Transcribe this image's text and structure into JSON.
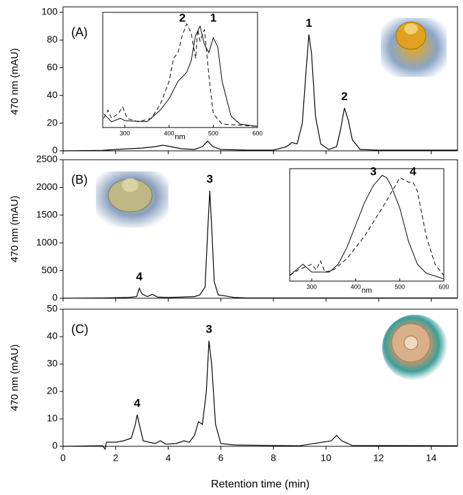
{
  "chart_data": [
    {
      "type": "line",
      "label": "(A)",
      "ylabel": "470 nm (mAU)",
      "xlim": [
        0,
        15
      ],
      "ylim": [
        0,
        100
      ],
      "yticks": [
        0,
        20,
        40,
        60,
        80,
        100
      ],
      "series": [
        {
          "color": "#000000",
          "x": [
            0,
            1.5,
            2,
            2.5,
            3,
            3.5,
            3.8,
            4.1,
            4.5,
            5,
            5.3,
            5.5,
            5.7,
            6,
            7,
            8,
            8.5,
            8.7,
            8.9,
            9.1,
            9.25,
            9.35,
            9.45,
            9.6,
            9.8,
            10.1,
            10.4,
            10.55,
            10.7,
            10.85,
            11,
            11.3,
            12,
            15
          ],
          "values": [
            0,
            0.3,
            1,
            1.5,
            2,
            3,
            4,
            3,
            1.5,
            1,
            3,
            7,
            3,
            1,
            0.5,
            0.5,
            3,
            6,
            5,
            20,
            60,
            84,
            70,
            25,
            5,
            1,
            3,
            15,
            31,
            22,
            8,
            1,
            0.5,
            0.5
          ]
        }
      ],
      "peak_labels": [
        {
          "label": "1",
          "x": 9.35,
          "y": 84
        },
        {
          "label": "2",
          "x": 10.7,
          "y": 31
        }
      ],
      "inset": {
        "type": "line",
        "xlim": [
          250,
          600
        ],
        "ylim": [
          0,
          100
        ],
        "xticks": [
          300,
          400,
          500,
          600
        ],
        "xlabel": "nm",
        "series": [
          {
            "color": "#000000",
            "dash": false,
            "x": [
              252,
              270,
              290,
              300,
              350,
              380,
              400,
              420,
              440,
              450,
              460,
              470,
              480,
              490,
              500,
              510,
              520,
              540,
              560,
              600
            ],
            "values": [
              12,
              5,
              8,
              6,
              5,
              15,
              25,
              40,
              48,
              58,
              80,
              88,
              72,
              65,
              78,
              70,
              40,
              10,
              3,
              1
            ]
          },
          {
            "color": "#000000",
            "dash": true,
            "x": [
              252,
              262,
              270,
              285,
              295,
              305,
              330,
              360,
              380,
              400,
              410,
              420,
              430,
              440,
              450,
              460,
              465,
              470,
              480,
              490,
              500,
              520,
              600
            ],
            "values": [
              8,
              15,
              8,
              12,
              18,
              8,
              5,
              8,
              20,
              40,
              60,
              65,
              80,
              90,
              82,
              60,
              85,
              75,
              85,
              45,
              12,
              3,
              1
            ]
          }
        ],
        "peak_labels": [
          {
            "label": "2",
            "x": 430,
            "y": 90
          },
          {
            "label": "1",
            "x": 500,
            "y": 90
          }
        ]
      }
    },
    {
      "type": "line",
      "label": "(B)",
      "ylabel": "470 nm (mAU)",
      "xlim": [
        0,
        15
      ],
      "ylim": [
        0,
        2500
      ],
      "yticks": [
        0,
        500,
        1000,
        1500,
        2000,
        2500
      ],
      "series": [
        {
          "color": "#000000",
          "x": [
            0,
            1.5,
            2,
            2.5,
            2.8,
            2.9,
            3.0,
            3.2,
            3.4,
            3.6,
            4,
            4.5,
            5,
            5.2,
            5.4,
            5.5,
            5.58,
            5.65,
            5.75,
            5.9,
            6.2,
            6.5,
            7,
            15
          ],
          "values": [
            0,
            5,
            10,
            15,
            30,
            180,
            80,
            30,
            70,
            20,
            15,
            20,
            30,
            60,
            200,
            1200,
            1940,
            1300,
            300,
            60,
            40,
            15,
            5,
            5
          ]
        }
      ],
      "peak_labels": [
        {
          "label": "3",
          "x": 5.58,
          "y": 1940
        },
        {
          "label": "4",
          "x": 2.9,
          "y": 180
        }
      ],
      "inset": {
        "type": "line",
        "xlim": [
          250,
          600
        ],
        "ylim": [
          0,
          100
        ],
        "xticks": [
          300,
          400,
          500,
          600
        ],
        "xlabel": "nm",
        "series": [
          {
            "color": "#000000",
            "dash": false,
            "x": [
              250,
              280,
              300,
              340,
              360,
              380,
              400,
              420,
              440,
              460,
              470,
              480,
              500,
              520,
              540,
              560,
              600
            ],
            "values": [
              5,
              15,
              8,
              8,
              15,
              30,
              50,
              70,
              85,
              94,
              92,
              85,
              65,
              35,
              15,
              7,
              2
            ]
          },
          {
            "color": "#000000",
            "dash": true,
            "x": [
              250,
              270,
              300,
              310,
              320,
              330,
              350,
              380,
              420,
              460,
              490,
              500,
              510,
              520,
              530,
              540,
              560,
              580,
              600
            ],
            "values": [
              5,
              10,
              15,
              10,
              18,
              8,
              10,
              20,
              40,
              65,
              85,
              92,
              90,
              88,
              88,
              80,
              40,
              15,
              5
            ]
          }
        ],
        "peak_labels": [
          {
            "label": "3",
            "x": 440,
            "y": 92
          },
          {
            "label": "4",
            "x": 530,
            "y": 92
          }
        ]
      }
    },
    {
      "type": "line",
      "label": "(C)",
      "ylabel": "470 nm (mAU)",
      "xlabel": "Retention time (min)",
      "xlim": [
        0,
        15
      ],
      "ylim": [
        0,
        50
      ],
      "yticks": [
        0,
        10,
        20,
        30,
        40,
        50
      ],
      "xticks": [
        0,
        2,
        4,
        6,
        8,
        10,
        12,
        14
      ],
      "series": [
        {
          "color": "#000000",
          "x": [
            0,
            1.5,
            1.6,
            1.65,
            2,
            2.3,
            2.6,
            2.75,
            2.82,
            2.9,
            3.05,
            3.5,
            3.7,
            3.9,
            4.3,
            4.6,
            4.8,
            5,
            5.15,
            5.3,
            5.45,
            5.55,
            5.65,
            5.8,
            6,
            6.5,
            8,
            9,
            10.2,
            10.4,
            10.6,
            11,
            15
          ],
          "values": [
            0,
            0.2,
            -1,
            1.5,
            1.5,
            2,
            3,
            8,
            11.5,
            8,
            2,
            1,
            2,
            0.8,
            1,
            2,
            1.5,
            4,
            9,
            8,
            20,
            38.5,
            30,
            8,
            1,
            0.5,
            0.3,
            0.2,
            2,
            4,
            2,
            0.3,
            0.2
          ]
        }
      ],
      "peak_labels": [
        {
          "label": "3",
          "x": 5.55,
          "y": 38.5
        },
        {
          "label": "4",
          "x": 2.82,
          "y": 11.5
        }
      ]
    }
  ]
}
